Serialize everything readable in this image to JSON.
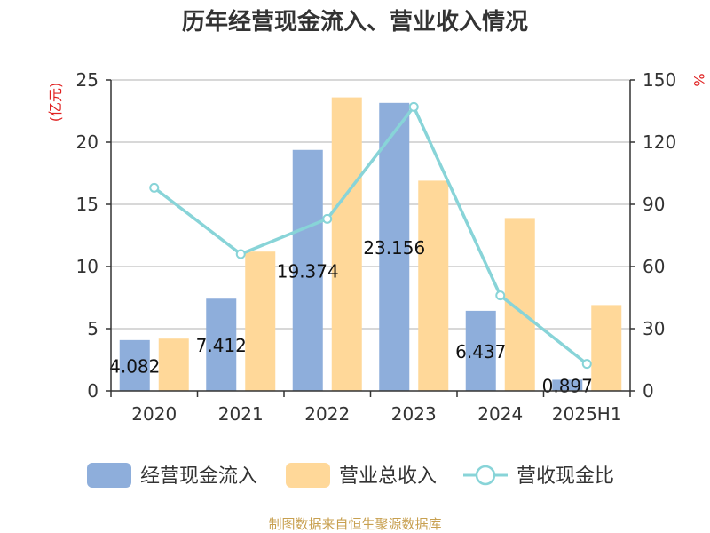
{
  "chart_data": {
    "type": "bar",
    "title": "历年经营现金流入、营业收入情况",
    "categories": [
      "2020",
      "2021",
      "2022",
      "2023",
      "2024",
      "2025H1"
    ],
    "series": [
      {
        "name": "经营现金流入",
        "type": "bar",
        "axis": "left",
        "color": "#8eaedb",
        "values": [
          4.082,
          7.412,
          19.374,
          23.156,
          6.437,
          0.897
        ],
        "labels": [
          "4.082",
          "7.412",
          "19.374",
          "23.156",
          "6.437",
          "0.897"
        ]
      },
      {
        "name": "营业总收入",
        "type": "bar",
        "axis": "left",
        "color": "#ffd899",
        "values": [
          4.2,
          11.2,
          23.6,
          16.9,
          13.9,
          6.9
        ]
      },
      {
        "name": "营收现金比",
        "type": "line",
        "axis": "right",
        "color": "#88d4d8",
        "values": [
          98,
          66,
          83,
          137,
          46,
          13
        ]
      }
    ],
    "left_axis": {
      "label": "(亿元)",
      "ylim": [
        0,
        25
      ],
      "ticks": [
        "0",
        "5",
        "10",
        "15",
        "20",
        "25"
      ]
    },
    "right_axis": {
      "label": "%",
      "ylim": [
        0,
        150
      ],
      "ticks": [
        "0",
        "30",
        "60",
        "90",
        "120",
        "150"
      ]
    },
    "grid": true,
    "legend": "bottom",
    "source": "制图数据来自恒生聚源数据库",
    "colors": {
      "axis_label": "#e02020",
      "source": "#c8a050",
      "grid": "#cccccc"
    }
  }
}
